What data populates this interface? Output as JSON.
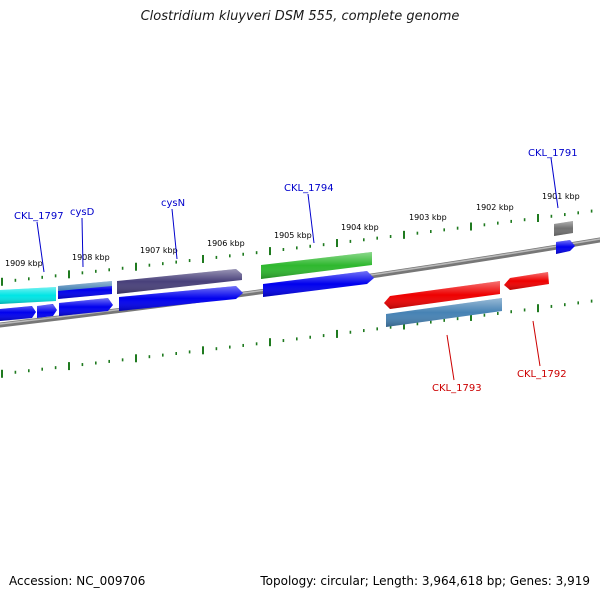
{
  "title": "Clostridium kluyveri DSM 555, complete genome",
  "footer": {
    "accession": "Accession: NC_009706",
    "topology": "Topology: circular; Length: 3,964,618 bp; Genes: 3,919"
  },
  "colors": {
    "backbone": "#808080",
    "tick": "#1f7a1f",
    "label_blue": "#0000cc",
    "label_red": "#cc0000",
    "gene_blue": "#0000ee",
    "gene_cyan": "#00e5e5",
    "gene_steel": "#4682b4",
    "gene_slate": "#48407a",
    "gene_green": "#2eb82e",
    "gene_red": "#ee0000",
    "gene_gray": "#707070"
  },
  "scale": {
    "unit": "kbp",
    "labels": [
      "1909 kbp",
      "1908 kbp",
      "1907 kbp",
      "1906 kbp",
      "1905 kbp",
      "1904 kbp",
      "1903 kbp",
      "1902 kbp",
      "1901 kbp"
    ]
  },
  "genes": [
    {
      "name": "CKL_1797",
      "strand": "+",
      "label_color": "#0000cc"
    },
    {
      "name": "cysD",
      "strand": "+",
      "label_color": "#0000cc"
    },
    {
      "name": "cysN",
      "strand": "+",
      "label_color": "#0000cc"
    },
    {
      "name": "CKL_1794",
      "strand": "+",
      "label_color": "#0000cc"
    },
    {
      "name": "CKL_1793",
      "strand": "-",
      "label_color": "#cc0000"
    },
    {
      "name": "CKL_1792",
      "strand": "-",
      "label_color": "#cc0000"
    },
    {
      "name": "CKL_1791",
      "strand": "+",
      "label_color": "#0000cc"
    }
  ]
}
